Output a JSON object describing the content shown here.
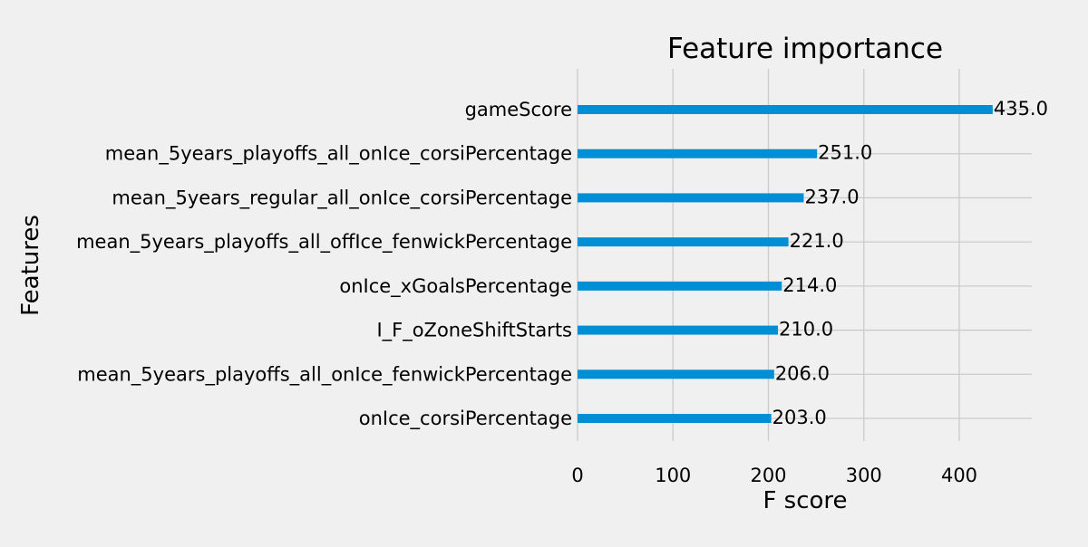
{
  "chart_data": {
    "type": "bar",
    "orientation": "horizontal",
    "title": "Feature importance",
    "xlabel": "F score",
    "ylabel": "Features",
    "xlim": [
      0,
      476
    ],
    "xticks": [
      0,
      100,
      200,
      300,
      400
    ],
    "grid": true,
    "categories": [
      "onIce_corsiPercentage",
      "mean_5years_playoffs_all_onIce_fenwickPercentage",
      "I_F_oZoneShiftStarts",
      "onIce_xGoalsPercentage",
      "mean_5years_playoffs_all_offIce_fenwickPercentage",
      "mean_5years_regular_all_onIce_corsiPercentage",
      "mean_5years_playoffs_all_onIce_corsiPercentage",
      "gameScore"
    ],
    "values": [
      203.0,
      206.0,
      210.0,
      214.0,
      221.0,
      237.0,
      251.0,
      435.0
    ],
    "value_labels": [
      "203.0",
      "206.0",
      "210.0",
      "214.0",
      "221.0",
      "237.0",
      "251.0",
      "435.0"
    ],
    "colors": {
      "bar": "#008fd5",
      "grid": "#cbcbcb",
      "background": "#f0f0f0",
      "text": "#000000"
    }
  }
}
